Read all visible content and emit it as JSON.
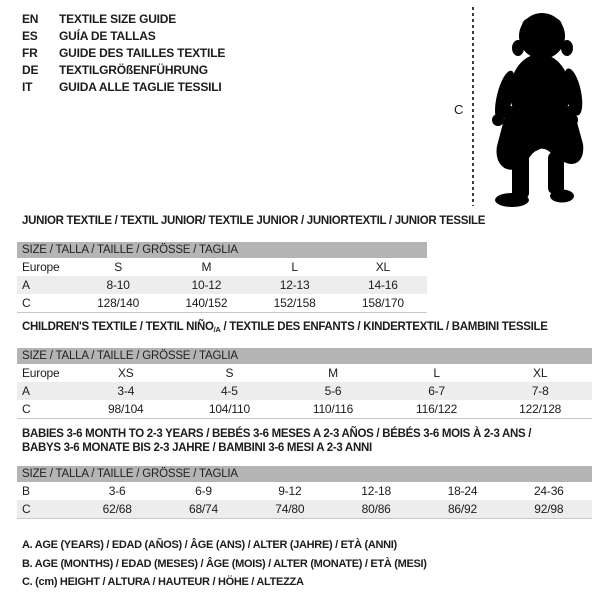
{
  "colors": {
    "header_bar": "#b4b4b4",
    "shaded_row": "#ededed",
    "text": "#1c1c1c",
    "silhouette": "#000000"
  },
  "languages": {
    "items": [
      {
        "code": "EN",
        "label": "TEXTILE SIZE GUIDE"
      },
      {
        "code": "ES",
        "label": "GUÍA DE TALLAS"
      },
      {
        "code": "FR",
        "label": "GUIDE DES TAILLES TEXTILE"
      },
      {
        "code": "DE",
        "label": "TEXTILGRÖßENFÜHRUNG"
      },
      {
        "code": "IT",
        "label": "GUIDA ALLE TAGLIE TESSILI"
      }
    ]
  },
  "figure": {
    "height_label": "C"
  },
  "size_header": "SIZE / TALLA / TAILLE / GRÖSSE / TAGLIA",
  "tables": [
    {
      "title": "JUNIOR TEXTILE / TEXTIL JUNIOR/ TEXTILE JUNIOR / JUNIORTEXTIL / JUNIOR TESSILE",
      "rows": [
        {
          "label": "Europe",
          "values": [
            "S",
            "M",
            "L",
            "XL"
          ],
          "shaded": false
        },
        {
          "label": "A",
          "values": [
            "8-10",
            "10-12",
            "12-13",
            "14-16"
          ],
          "shaded": true
        },
        {
          "label": "C",
          "values": [
            "128/140",
            "140/152",
            "152/158",
            "158/170"
          ],
          "shaded": false
        }
      ]
    },
    {
      "title": "CHILDREN'S TEXTILE / TEXTIL NIÑO",
      "title_sub": "/A",
      "title_suffix": " / TEXTILE DES ENFANTS / KINDERTEXTIL / BAMBINI TESSILE",
      "rows": [
        {
          "label": "Europe",
          "values": [
            "XS",
            "S",
            "M",
            "L",
            "XL"
          ],
          "shaded": false
        },
        {
          "label": "A",
          "values": [
            "3-4",
            "4-5",
            "5-6",
            "6-7",
            "7-8"
          ],
          "shaded": true
        },
        {
          "label": "C",
          "values": [
            "98/104",
            "104/110",
            "110/116",
            "116/122",
            "122/128"
          ],
          "shaded": false
        }
      ]
    },
    {
      "title": "BABIES 3-6 MONTH TO 2-3 YEARS / BEBÉS 3-6 MESES A 2-3 AÑOS / BÉBÉS 3-6 MOIS À 2-3 ANS /",
      "title_line2": "BABYS 3-6 MONATE BIS 2-3 JAHRE / BAMBINI 3-6 MESI A 2-3 ANNI",
      "rows": [
        {
          "label": "B",
          "values": [
            "3-6",
            "6-9",
            "9-12",
            "12-18",
            "18-24",
            "24-36"
          ],
          "shaded": false
        },
        {
          "label": "C",
          "values": [
            "62/68",
            "68/74",
            "74/80",
            "80/86",
            "86/92",
            "92/98"
          ],
          "shaded": true
        }
      ]
    }
  ],
  "legend": {
    "line_a": "A. AGE (YEARS) / EDAD (AÑOS) / ÂGE (ANS) / ALTER (JAHRE) / ETÀ (ANNI)",
    "line_b": "B. AGE (MONTHS) / EDAD (MESES) / ÂGE (MOIS) / ALTER (MONATE) / ETÀ (MESI)",
    "line_c": "C. (cm) HEIGHT / ALTURA / HAUTEUR / HÖHE / ALTEZZA"
  }
}
